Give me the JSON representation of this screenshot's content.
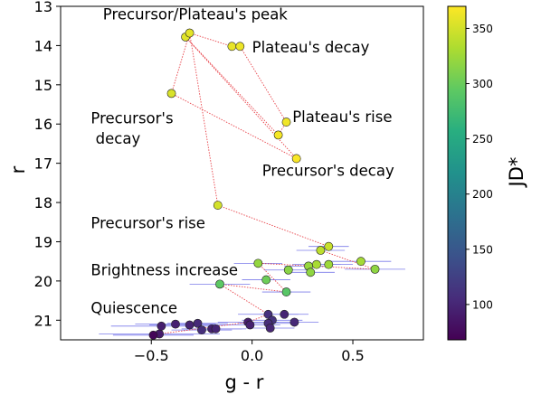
{
  "chart_data": {
    "type": "scatter",
    "xlabel": "g - r",
    "ylabel": "r",
    "xlim": [
      -0.95,
      0.85
    ],
    "ylim": [
      21.5,
      13.0
    ],
    "y_inverted": true,
    "xticks": [
      -0.5,
      0.0,
      0.5
    ],
    "xtick_labels": [
      "−0.5",
      "0.0",
      "0.5"
    ],
    "yticks": [
      13,
      14,
      15,
      16,
      17,
      18,
      19,
      20,
      21
    ],
    "ytick_labels": [
      "13",
      "14",
      "15",
      "16",
      "17",
      "18",
      "19",
      "20",
      "21"
    ],
    "grid": false,
    "colorbar": {
      "label": "JD*",
      "range": [
        68,
        370
      ],
      "ticks": [
        100,
        150,
        200,
        250,
        300,
        350
      ],
      "tick_labels": [
        "100",
        "150",
        "200",
        "250",
        "300",
        "350"
      ],
      "colormap": "viridis"
    },
    "connecting_line_color": "#e8434a",
    "errorbar_color": "#7b7bea",
    "annotations": [
      {
        "text": "Precursor/Plateau's peak",
        "x": -0.74,
        "y": 13.33
      },
      {
        "text": "Plateau's decay",
        "x": 0.0,
        "y": 14.17
      },
      {
        "text": "Plateau's rise",
        "x": 0.2,
        "y": 15.95
      },
      {
        "text": "Precursor's",
        "x": -0.8,
        "y": 15.98
      },
      {
        "text": " decay",
        "x": -0.8,
        "y": 16.5
      },
      {
        "text": "Precursor's decay",
        "x": 0.05,
        "y": 17.32
      },
      {
        "text": "Precursor's rise",
        "x": -0.8,
        "y": 18.65
      },
      {
        "text": "Brightness increase",
        "x": -0.8,
        "y": 19.85
      },
      {
        "text": "Quiescence",
        "x": -0.8,
        "y": 20.82
      }
    ],
    "points": [
      {
        "x": -0.46,
        "y": 21.35,
        "jd": 90,
        "xerr": 0.3,
        "yerr": 0.1
      },
      {
        "x": -0.45,
        "y": 21.15,
        "jd": 93,
        "xerr": 0.25,
        "yerr": 0.1
      },
      {
        "x": -0.38,
        "y": 21.1,
        "jd": 95,
        "xerr": 0.2,
        "yerr": 0.1
      },
      {
        "x": -0.31,
        "y": 21.12,
        "jd": 98,
        "xerr": 0.2,
        "yerr": 0.1
      },
      {
        "x": -0.27,
        "y": 21.08,
        "jd": 103,
        "xerr": 0.15,
        "yerr": 0.1
      },
      {
        "x": -0.25,
        "y": 21.25,
        "jd": 108,
        "xerr": 0.15,
        "yerr": 0.08
      },
      {
        "x": -0.2,
        "y": 21.22,
        "jd": 96,
        "xerr": 0.15,
        "yerr": 0.1
      },
      {
        "x": -0.18,
        "y": 21.22,
        "jd": 100,
        "xerr": 0.15,
        "yerr": 0.1
      },
      {
        "x": -0.02,
        "y": 21.05,
        "jd": 92,
        "xerr": 0.15,
        "yerr": 0.1
      },
      {
        "x": -0.01,
        "y": 21.12,
        "jd": 95,
        "xerr": 0.15,
        "yerr": 0.1
      },
      {
        "x": 0.08,
        "y": 20.85,
        "jd": 110,
        "xerr": 0.15,
        "yerr": 0.1
      },
      {
        "x": 0.1,
        "y": 21.0,
        "jd": 112,
        "xerr": 0.15,
        "yerr": 0.1
      },
      {
        "x": 0.08,
        "y": 21.08,
        "jd": 106,
        "xerr": 0.15,
        "yerr": 0.1
      },
      {
        "x": 0.09,
        "y": 21.2,
        "jd": 100,
        "xerr": 0.12,
        "yerr": 0.08
      },
      {
        "x": 0.16,
        "y": 20.85,
        "jd": 98,
        "xerr": 0.12,
        "yerr": 0.1
      },
      {
        "x": 0.21,
        "y": 21.05,
        "jd": 102,
        "xerr": 0.12,
        "yerr": 0.1
      },
      {
        "x": -0.49,
        "y": 21.38,
        "jd": 72,
        "xerr": 0.2,
        "yerr": 0.1
      },
      {
        "x": -0.16,
        "y": 20.08,
        "jd": 293,
        "xerr": 0.15,
        "yerr": 0.1
      },
      {
        "x": 0.03,
        "y": 19.55,
        "jd": 320,
        "xerr": 0.12,
        "yerr": 0.1
      },
      {
        "x": 0.07,
        "y": 19.97,
        "jd": 302,
        "xerr": 0.12,
        "yerr": 0.1
      },
      {
        "x": 0.18,
        "y": 19.72,
        "jd": 315,
        "xerr": 0.12,
        "yerr": 0.1
      },
      {
        "x": 0.28,
        "y": 19.62,
        "jd": 322,
        "xerr": 0.12,
        "yerr": 0.1
      },
      {
        "x": 0.29,
        "y": 19.78,
        "jd": 318,
        "xerr": 0.12,
        "yerr": 0.1
      },
      {
        "x": 0.32,
        "y": 19.58,
        "jd": 330,
        "xerr": 0.12,
        "yerr": 0.1
      },
      {
        "x": 0.38,
        "y": 19.58,
        "jd": 325,
        "xerr": 0.12,
        "yerr": 0.1
      },
      {
        "x": 0.54,
        "y": 19.5,
        "jd": 328,
        "xerr": 0.15,
        "yerr": 0.1
      },
      {
        "x": 0.61,
        "y": 19.7,
        "jd": 318,
        "xerr": 0.15,
        "yerr": 0.1
      },
      {
        "x": 0.17,
        "y": 20.28,
        "jd": 290,
        "xerr": 0.12,
        "yerr": 0.1
      },
      {
        "x": 0.34,
        "y": 19.22,
        "jd": 340,
        "xerr": 0.12,
        "yerr": 0.1
      },
      {
        "x": 0.38,
        "y": 19.12,
        "jd": 345,
        "xerr": 0.1,
        "yerr": 0.1
      },
      {
        "x": -0.17,
        "y": 18.07,
        "jd": 350,
        "xerr": 0,
        "yerr": 0
      },
      {
        "x": -0.4,
        "y": 15.22,
        "jd": 353,
        "xerr": 0,
        "yerr": 0
      },
      {
        "x": -0.33,
        "y": 13.78,
        "jd": 356,
        "xerr": 0,
        "yerr": 0
      },
      {
        "x": -0.31,
        "y": 13.68,
        "jd": 358,
        "xerr": 0,
        "yerr": 0
      },
      {
        "x": -0.1,
        "y": 14.02,
        "jd": 360,
        "xerr": 0,
        "yerr": 0
      },
      {
        "x": -0.06,
        "y": 14.02,
        "jd": 362,
        "xerr": 0,
        "yerr": 0
      },
      {
        "x": 0.17,
        "y": 15.95,
        "jd": 364,
        "xerr": 0,
        "yerr": 0
      },
      {
        "x": 0.13,
        "y": 16.28,
        "jd": 366,
        "xerr": 0,
        "yerr": 0
      },
      {
        "x": 0.22,
        "y": 16.88,
        "jd": 368,
        "xerr": 0,
        "yerr": 0
      }
    ],
    "path": [
      [
        -0.46,
        21.35
      ],
      [
        -0.02,
        21.05
      ],
      [
        0.08,
        20.85
      ],
      [
        -0.16,
        20.08
      ],
      [
        0.17,
        20.28
      ],
      [
        0.03,
        19.55
      ],
      [
        0.61,
        19.7
      ],
      [
        0.34,
        19.22
      ],
      [
        0.38,
        19.12
      ],
      [
        -0.17,
        18.07
      ],
      [
        -0.31,
        13.68
      ],
      [
        -0.4,
        15.22
      ],
      [
        0.22,
        16.88
      ],
      [
        -0.33,
        13.78
      ],
      [
        0.13,
        16.28
      ],
      [
        0.17,
        15.95
      ],
      [
        -0.06,
        14.02
      ],
      [
        -0.1,
        14.02
      ],
      [
        -0.31,
        13.68
      ]
    ]
  }
}
